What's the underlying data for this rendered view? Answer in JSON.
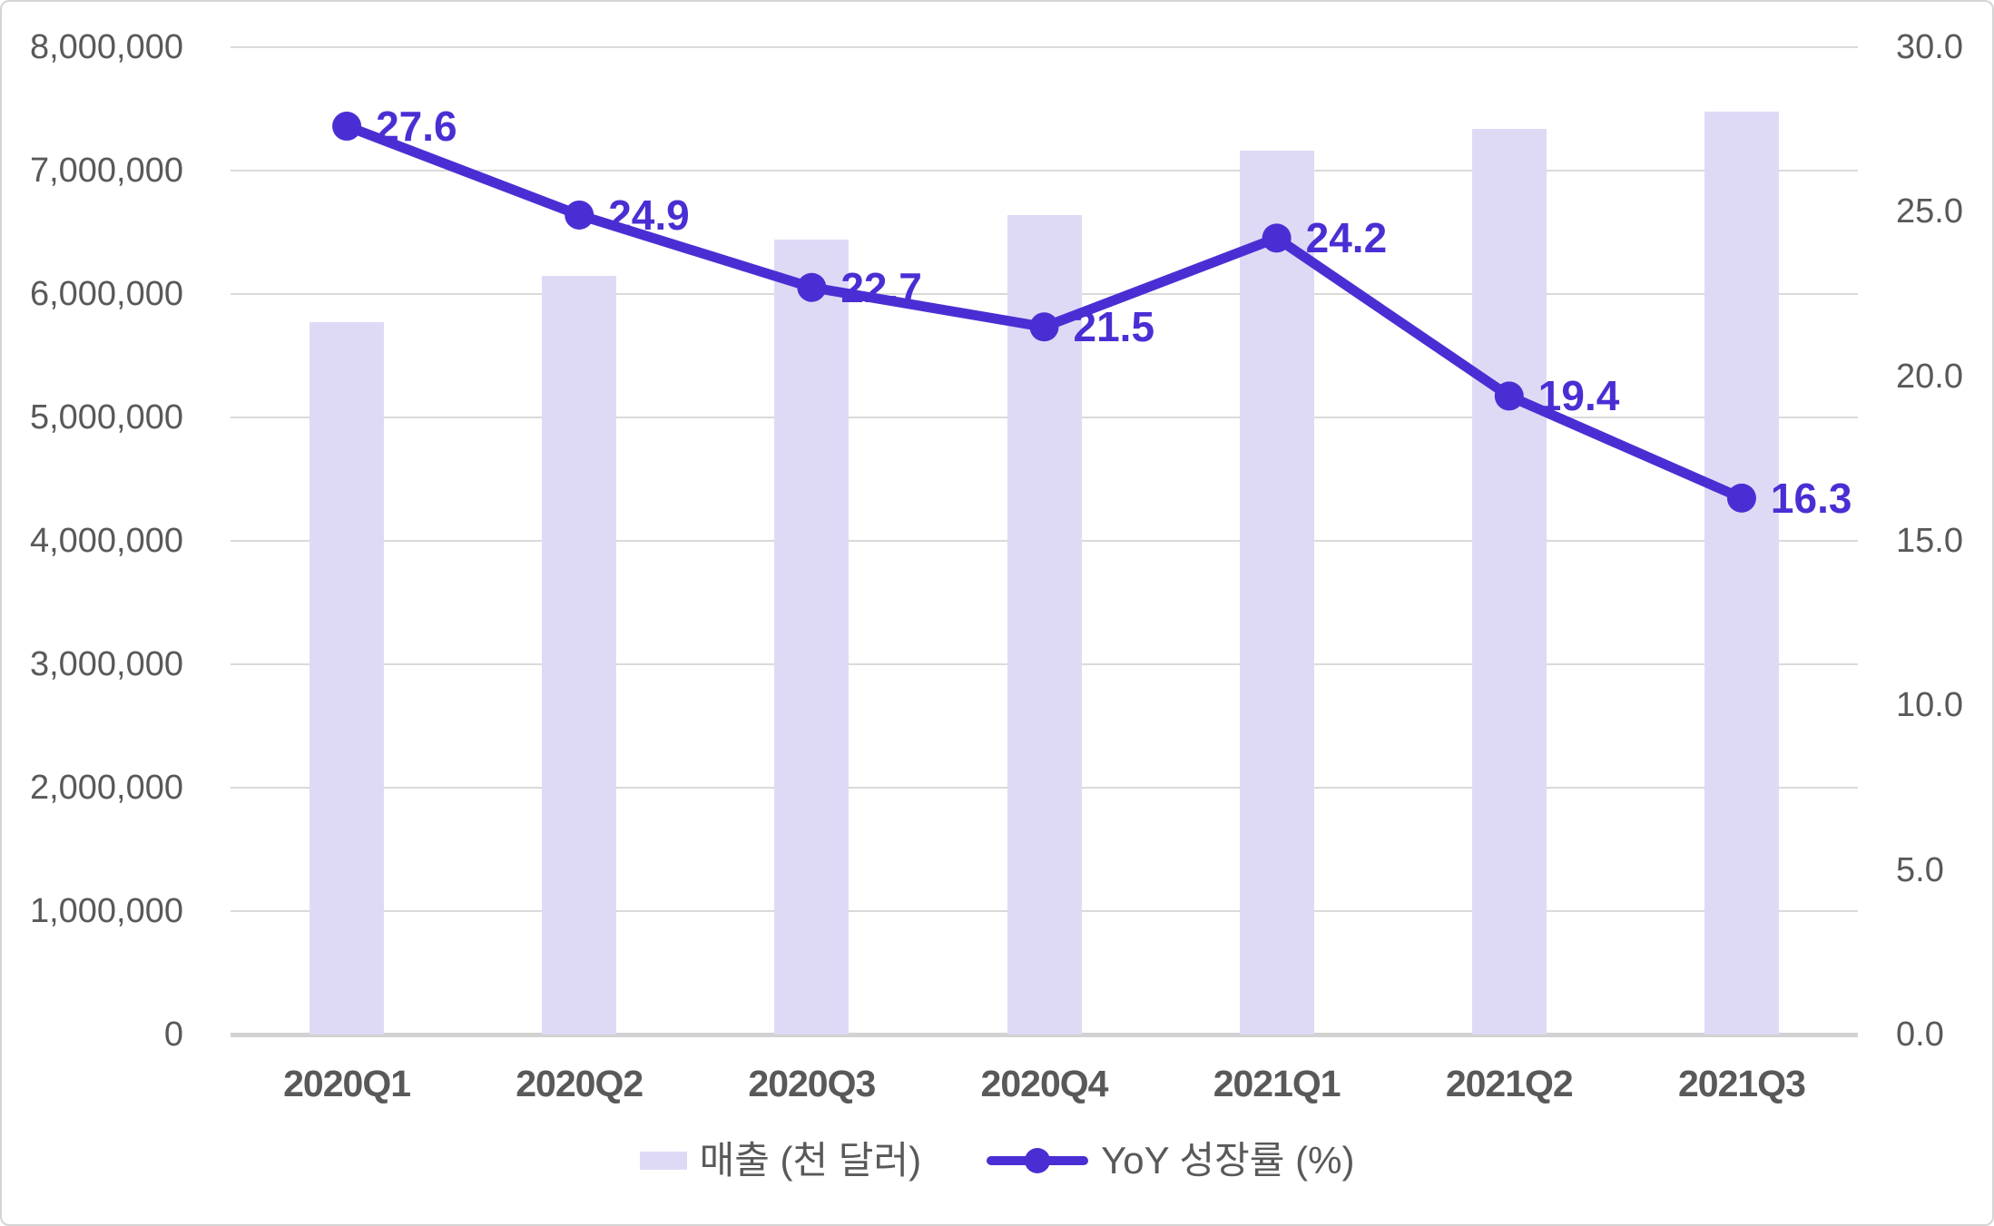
{
  "chart_data": {
    "type": "combo",
    "categories": [
      "2020Q1",
      "2020Q2",
      "2020Q3",
      "2020Q4",
      "2021Q1",
      "2021Q2",
      "2021Q3"
    ],
    "series": [
      {
        "name": "매출 (천 달러)",
        "type": "bar",
        "axis": "left",
        "values": [
          5770000,
          6150000,
          6440000,
          6640000,
          7160000,
          7340000,
          7480000
        ]
      },
      {
        "name": "YoY 성장률 (%)",
        "type": "line",
        "axis": "right",
        "values": [
          27.6,
          24.9,
          22.7,
          21.5,
          24.2,
          19.4,
          16.3
        ],
        "data_labels": [
          "27.6",
          "24.9",
          "22.7",
          "21.5",
          "24.2",
          "19.4",
          "16.3"
        ]
      }
    ],
    "left_axis": {
      "min": 0,
      "max": 8000000,
      "step": 1000000,
      "tick_labels": [
        "0",
        "1,000,000",
        "2,000,000",
        "3,000,000",
        "4,000,000",
        "5,000,000",
        "6,000,000",
        "7,000,000",
        "8,000,000"
      ]
    },
    "right_axis": {
      "min": 0,
      "max": 30,
      "step": 5,
      "tick_labels": [
        "0.0",
        "5.0",
        "10.0",
        "15.0",
        "20.0",
        "25.0",
        "30.0"
      ]
    },
    "grid": "horizontal-only",
    "legend_position": "bottom",
    "title": ""
  },
  "legend": {
    "bar_label": "매출 (천 달러)",
    "line_label": "YoY 성장률 (%)"
  },
  "colors": {
    "bar_fill": "#DEDAF6",
    "line": "#4B2ED3",
    "data_label": "#4B2ED3",
    "grid": "#DADADA",
    "axis_text": "#595959"
  }
}
